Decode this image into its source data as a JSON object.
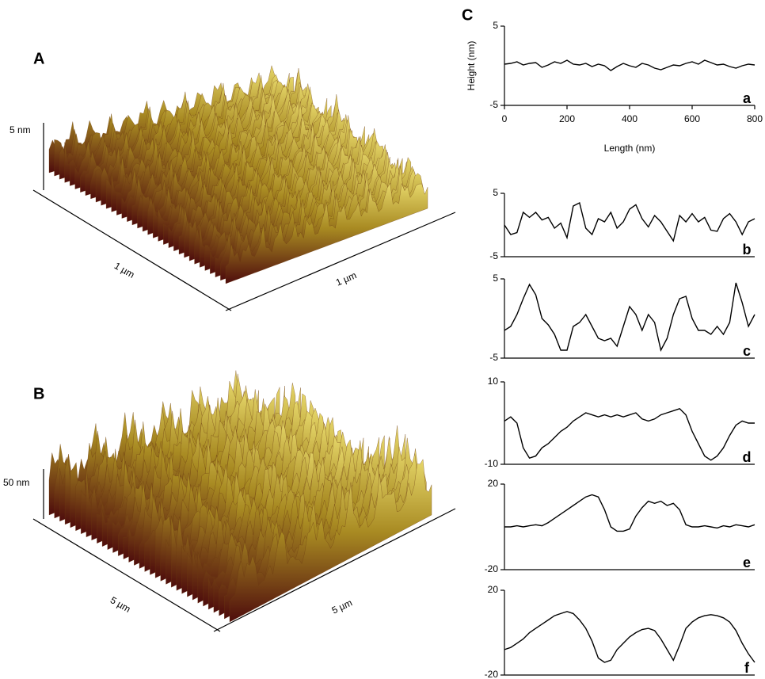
{
  "surfaces": [
    {
      "label": "A",
      "z_label": "5 nm",
      "x_label": "1 µm",
      "y_label": "1 µm"
    },
    {
      "label": "B",
      "z_label": "50 nm",
      "x_label": "5 µm",
      "y_label": "5 µm"
    }
  ],
  "panel_label": "C",
  "chart_data": [
    {
      "type": "line",
      "label": "a",
      "xlabel": "Length (nm)",
      "ylabel": "Height (nm)",
      "color": "#000000",
      "xlim": [
        0,
        800
      ],
      "xticks": [
        0,
        200,
        400,
        600,
        800
      ],
      "ylim": [
        -5,
        5
      ],
      "yticks": [
        -5,
        5
      ],
      "x": [
        0,
        20,
        40,
        60,
        80,
        100,
        120,
        140,
        160,
        180,
        200,
        220,
        240,
        260,
        280,
        300,
        320,
        340,
        360,
        380,
        400,
        420,
        440,
        460,
        480,
        500,
        520,
        540,
        560,
        580,
        600,
        620,
        640,
        660,
        680,
        700,
        720,
        740,
        760,
        780,
        800
      ],
      "values": [
        0.2,
        0.3,
        0.5,
        0.1,
        0.3,
        0.4,
        -0.2,
        0.1,
        0.5,
        0.3,
        0.7,
        0.2,
        0.1,
        0.3,
        -0.1,
        0.2,
        0,
        -0.6,
        -0.1,
        0.3,
        0,
        -0.2,
        0.3,
        0.1,
        -0.3,
        -0.5,
        -0.2,
        0.1,
        0,
        0.3,
        0.5,
        0.2,
        0.7,
        0.4,
        0.1,
        0.2,
        -0.1,
        -0.3,
        0,
        0.2,
        0.1
      ]
    },
    {
      "type": "line",
      "label": "b",
      "color": "#000000",
      "xlim": [
        0,
        800
      ],
      "ylim": [
        -5,
        5
      ],
      "yticks": [
        -5,
        5
      ],
      "x": [
        0,
        20,
        40,
        60,
        80,
        100,
        120,
        140,
        160,
        180,
        200,
        220,
        240,
        260,
        280,
        300,
        320,
        340,
        360,
        380,
        400,
        420,
        440,
        460,
        480,
        500,
        520,
        540,
        560,
        580,
        600,
        620,
        640,
        660,
        680,
        700,
        720,
        740,
        760,
        780,
        800
      ],
      "values": [
        0,
        -1.5,
        -1.2,
        2,
        1.2,
        2,
        0.8,
        1.2,
        -0.5,
        0.3,
        -2,
        3,
        3.5,
        -0.5,
        -1.5,
        1,
        0.5,
        2,
        -0.5,
        0.5,
        2.5,
        3.2,
        1,
        -0.3,
        1.5,
        0.5,
        -1,
        -2.5,
        1.5,
        0.5,
        1.8,
        0.5,
        1.2,
        -0.8,
        -1,
        1,
        1.8,
        0.5,
        -1.5,
        0.5,
        1
      ]
    },
    {
      "type": "line",
      "label": "c",
      "color": "#000000",
      "xlim": [
        0,
        800
      ],
      "ylim": [
        -5,
        5
      ],
      "yticks": [
        -5,
        5
      ],
      "x": [
        0,
        20,
        40,
        60,
        80,
        100,
        120,
        140,
        160,
        180,
        200,
        220,
        240,
        260,
        280,
        300,
        320,
        340,
        360,
        380,
        400,
        420,
        440,
        460,
        480,
        500,
        520,
        540,
        560,
        580,
        600,
        620,
        640,
        660,
        680,
        700,
        720,
        740,
        760,
        780,
        800
      ],
      "values": [
        -1.5,
        -1,
        0.5,
        2.5,
        4.3,
        3,
        0,
        -0.8,
        -2,
        -4,
        -4,
        -1,
        -0.5,
        0.5,
        -1,
        -2.5,
        -2.8,
        -2.5,
        -3.5,
        -1,
        1.5,
        0.5,
        -1.5,
        0.5,
        -0.5,
        -4,
        -2.5,
        0.5,
        2.5,
        2.8,
        0,
        -1.5,
        -1.5,
        -2,
        -1,
        -2,
        -0.5,
        4.5,
        2,
        -1,
        0.5
      ]
    },
    {
      "type": "line",
      "label": "d",
      "color": "#000000",
      "xlim": [
        0,
        800
      ],
      "ylim": [
        -10,
        10
      ],
      "yticks": [
        -10,
        10
      ],
      "x": [
        0,
        20,
        40,
        60,
        80,
        100,
        120,
        140,
        160,
        180,
        200,
        220,
        240,
        260,
        280,
        300,
        320,
        340,
        360,
        380,
        400,
        420,
        440,
        460,
        480,
        500,
        520,
        540,
        560,
        580,
        600,
        620,
        640,
        660,
        680,
        700,
        720,
        740,
        760,
        780,
        800
      ],
      "values": [
        0.5,
        1.5,
        0,
        -6,
        -8.5,
        -8,
        -6,
        -5,
        -3.5,
        -2,
        -1,
        0.5,
        1.5,
        2.5,
        2,
        1.5,
        2,
        1.5,
        2,
        1.5,
        2,
        2.5,
        1,
        0.5,
        1,
        2,
        2.5,
        3,
        3.5,
        2,
        -2,
        -5,
        -8,
        -9,
        -8,
        -6,
        -3,
        -0.5,
        0.5,
        0,
        0
      ]
    },
    {
      "type": "line",
      "label": "e",
      "color": "#000000",
      "xlim": [
        0,
        800
      ],
      "ylim": [
        -20,
        20
      ],
      "yticks": [
        -20,
        20
      ],
      "x": [
        0,
        20,
        40,
        60,
        80,
        100,
        120,
        140,
        160,
        180,
        200,
        220,
        240,
        260,
        280,
        300,
        320,
        340,
        360,
        380,
        400,
        420,
        440,
        460,
        480,
        500,
        520,
        540,
        560,
        580,
        600,
        620,
        640,
        660,
        680,
        700,
        720,
        740,
        760,
        780,
        800
      ],
      "values": [
        0,
        0,
        0.5,
        0,
        0.5,
        1,
        0.5,
        2,
        4,
        6,
        8,
        10,
        12,
        14,
        15,
        14,
        8,
        0,
        -2,
        -2,
        -1,
        5,
        9,
        12,
        11,
        12,
        10,
        11,
        8,
        1,
        0,
        0,
        0.5,
        0,
        -0.5,
        0.5,
        0,
        1,
        0.5,
        0,
        1
      ]
    },
    {
      "type": "line",
      "label": "f",
      "color": "#000000",
      "xlim": [
        0,
        800
      ],
      "ylim": [
        -20,
        20
      ],
      "yticks": [
        -20,
        20
      ],
      "x": [
        0,
        20,
        40,
        60,
        80,
        100,
        120,
        140,
        160,
        180,
        200,
        220,
        240,
        260,
        280,
        300,
        320,
        340,
        360,
        380,
        400,
        420,
        440,
        460,
        480,
        500,
        520,
        540,
        560,
        580,
        600,
        620,
        640,
        660,
        680,
        700,
        720,
        740,
        760,
        780,
        800
      ],
      "values": [
        -8,
        -7,
        -5,
        -3,
        0,
        2,
        4,
        6,
        8,
        9,
        10,
        9,
        6,
        2,
        -4,
        -12,
        -14,
        -13,
        -8,
        -5,
        -2,
        0,
        1.5,
        2,
        1,
        -3,
        -8,
        -13,
        -6,
        2,
        5,
        7,
        8,
        8.5,
        8,
        7,
        5,
        1,
        -5,
        -10,
        -14
      ]
    }
  ]
}
